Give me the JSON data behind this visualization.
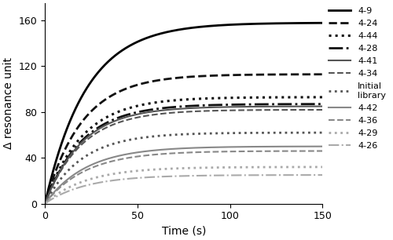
{
  "title": "",
  "xlabel": "Time (s)",
  "ylabel": "Δ resonance unit",
  "xlim": [
    0,
    150
  ],
  "ylim": [
    0,
    175
  ],
  "yticks": [
    0,
    40,
    80,
    120,
    160
  ],
  "xticks": [
    0,
    50,
    100,
    150
  ],
  "background_color": "#ffffff",
  "curves": [
    {
      "label": "4-9",
      "color": "#000000",
      "linestyle": "solid",
      "linewidth": 2.0,
      "plateau": 158,
      "rate": 0.045
    },
    {
      "label": "4-24",
      "color": "#111111",
      "linestyle": "dashed",
      "linewidth": 2.0,
      "plateau": 113,
      "rate": 0.05
    },
    {
      "label": "4-44",
      "color": "#111111",
      "linestyle": "dotted",
      "linewidth": 2.2,
      "plateau": 93,
      "rate": 0.05
    },
    {
      "label": "4-28",
      "color": "#111111",
      "linestyle": "dashdot",
      "linewidth": 2.0,
      "plateau": 87,
      "rate": 0.05
    },
    {
      "label": "4-41",
      "color": "#555555",
      "linestyle": "solid",
      "linewidth": 1.5,
      "plateau": 85,
      "rate": 0.05
    },
    {
      "label": "4-34",
      "color": "#555555",
      "linestyle": "dashed",
      "linewidth": 1.5,
      "plateau": 82,
      "rate": 0.05
    },
    {
      "label": "Initial\nlibrary",
      "color": "#555555",
      "linestyle": "dotted",
      "linewidth": 2.0,
      "plateau": 62,
      "rate": 0.05
    },
    {
      "label": "4-42",
      "color": "#888888",
      "linestyle": "solid",
      "linewidth": 1.5,
      "plateau": 50,
      "rate": 0.045
    },
    {
      "label": "4-36",
      "color": "#888888",
      "linestyle": "dashed",
      "linewidth": 1.5,
      "plateau": 46,
      "rate": 0.045
    },
    {
      "label": "4-29",
      "color": "#aaaaaa",
      "linestyle": "dotted",
      "linewidth": 2.0,
      "plateau": 32,
      "rate": 0.045
    },
    {
      "label": "4-26",
      "color": "#aaaaaa",
      "linestyle": "dashdot",
      "linewidth": 1.5,
      "plateau": 25,
      "rate": 0.045
    }
  ]
}
